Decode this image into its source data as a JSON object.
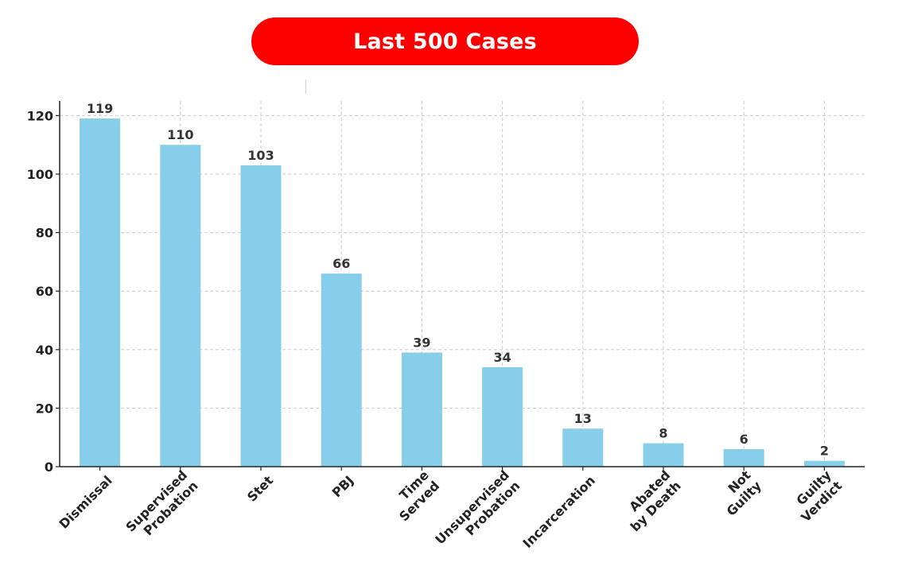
{
  "title": "Last 500 Cases",
  "colors": {
    "title_bg": "#fc0000",
    "bar": "#87ceeb",
    "grid": "#cccccc",
    "axis": "#222222"
  },
  "chart_data": {
    "type": "bar",
    "categories": [
      [
        "Dismissal"
      ],
      [
        "Supervised",
        "Probation"
      ],
      [
        "Stet"
      ],
      [
        "PBJ"
      ],
      [
        "Time",
        "Served"
      ],
      [
        "Unsupervised",
        "Probation"
      ],
      [
        "Incarceration"
      ],
      [
        "Abated",
        "by Death"
      ],
      [
        "Not",
        "Guilty"
      ],
      [
        "Guilty",
        "Verdict"
      ]
    ],
    "values": [
      119,
      110,
      103,
      66,
      39,
      34,
      13,
      8,
      6,
      2
    ],
    "yticks": [
      0,
      20,
      40,
      60,
      80,
      100,
      120
    ],
    "ylim": [
      0,
      125
    ],
    "grid": true,
    "data_labels": true
  }
}
